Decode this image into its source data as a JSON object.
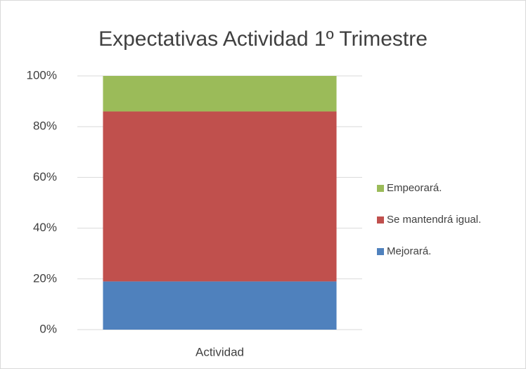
{
  "chart_data": {
    "type": "stacked_bar",
    "title": "Expectativas Actividad 1º Trimestre",
    "categories": [
      "Actividad"
    ],
    "series": [
      {
        "name": "Mejorará.",
        "color": "#4f81bd",
        "values": [
          19
        ]
      },
      {
        "name": "Se mantendrá igual.",
        "color": "#c0504d",
        "values": [
          67
        ]
      },
      {
        "name": "Empeorará.",
        "color": "#9bbb59",
        "values": [
          14
        ]
      }
    ],
    "ylim": [
      0,
      100
    ],
    "yticks": [
      {
        "value": 0,
        "label": "0%"
      },
      {
        "value": 20,
        "label": "20%"
      },
      {
        "value": 40,
        "label": "40%"
      },
      {
        "value": 60,
        "label": "60%"
      },
      {
        "value": 80,
        "label": "80%"
      },
      {
        "value": 100,
        "label": "100%"
      }
    ],
    "grid": true,
    "legend": "right"
  }
}
